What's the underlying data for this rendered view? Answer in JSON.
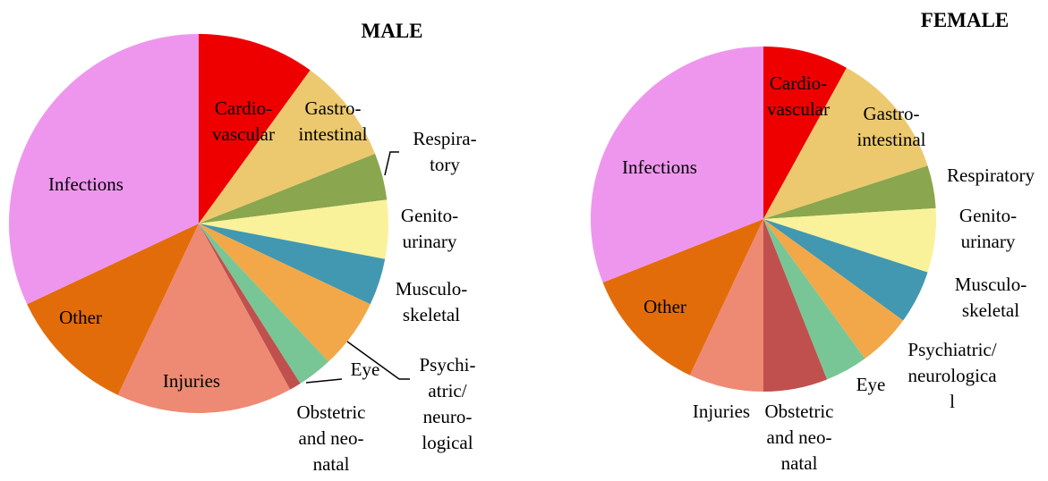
{
  "chart_data": [
    {
      "type": "pie",
      "title": "MALE",
      "categories": [
        [
          "Cardio-",
          "vascular"
        ],
        [
          "Gastro-",
          "intestinal"
        ],
        [
          "Respira-",
          "tory"
        ],
        [
          "Genito-",
          "urinary"
        ],
        [
          "Musculo-",
          "skeletal"
        ],
        [
          "Psychi-",
          "atric/",
          "neuro-",
          "logical"
        ],
        [
          "Eye"
        ],
        [
          "Obstetric",
          "and neo-",
          "natal"
        ],
        [
          "Injuries"
        ],
        [
          "Other"
        ],
        [
          "Infections"
        ]
      ],
      "values": [
        10,
        9,
        4,
        5,
        4,
        6,
        3,
        1,
        15,
        11,
        32
      ],
      "colors": [
        "#ee0000",
        "#ecc96e",
        "#8aa64e",
        "#f9f29a",
        "#4298b0",
        "#f2a848",
        "#78c696",
        "#c0504d",
        "#ee8a73",
        "#e36c0a",
        "#ee96ee"
      ]
    },
    {
      "type": "pie",
      "title": "FEMALE",
      "categories": [
        [
          "Cardio-",
          "vascular"
        ],
        [
          "Gastro-",
          "intestinal"
        ],
        [
          "Respiratory"
        ],
        [
          "Genito-",
          "urinary"
        ],
        [
          "Musculo-",
          "skeletal"
        ],
        [
          "Psychiatric/",
          "neurologica",
          "l"
        ],
        [
          "Eye"
        ],
        [
          "Obstetric",
          "and neo-",
          "natal"
        ],
        [
          "Injuries"
        ],
        [
          "Other"
        ],
        [
          "Infections"
        ]
      ],
      "values": [
        8,
        12,
        4,
        6,
        5,
        5,
        4,
        6,
        7,
        12,
        31
      ],
      "colors": [
        "#ee0000",
        "#ecc96e",
        "#8aa64e",
        "#f9f29a",
        "#4298b0",
        "#f2a848",
        "#78c696",
        "#c0504d",
        "#ee8a73",
        "#e36c0a",
        "#ee96ee"
      ]
    }
  ]
}
